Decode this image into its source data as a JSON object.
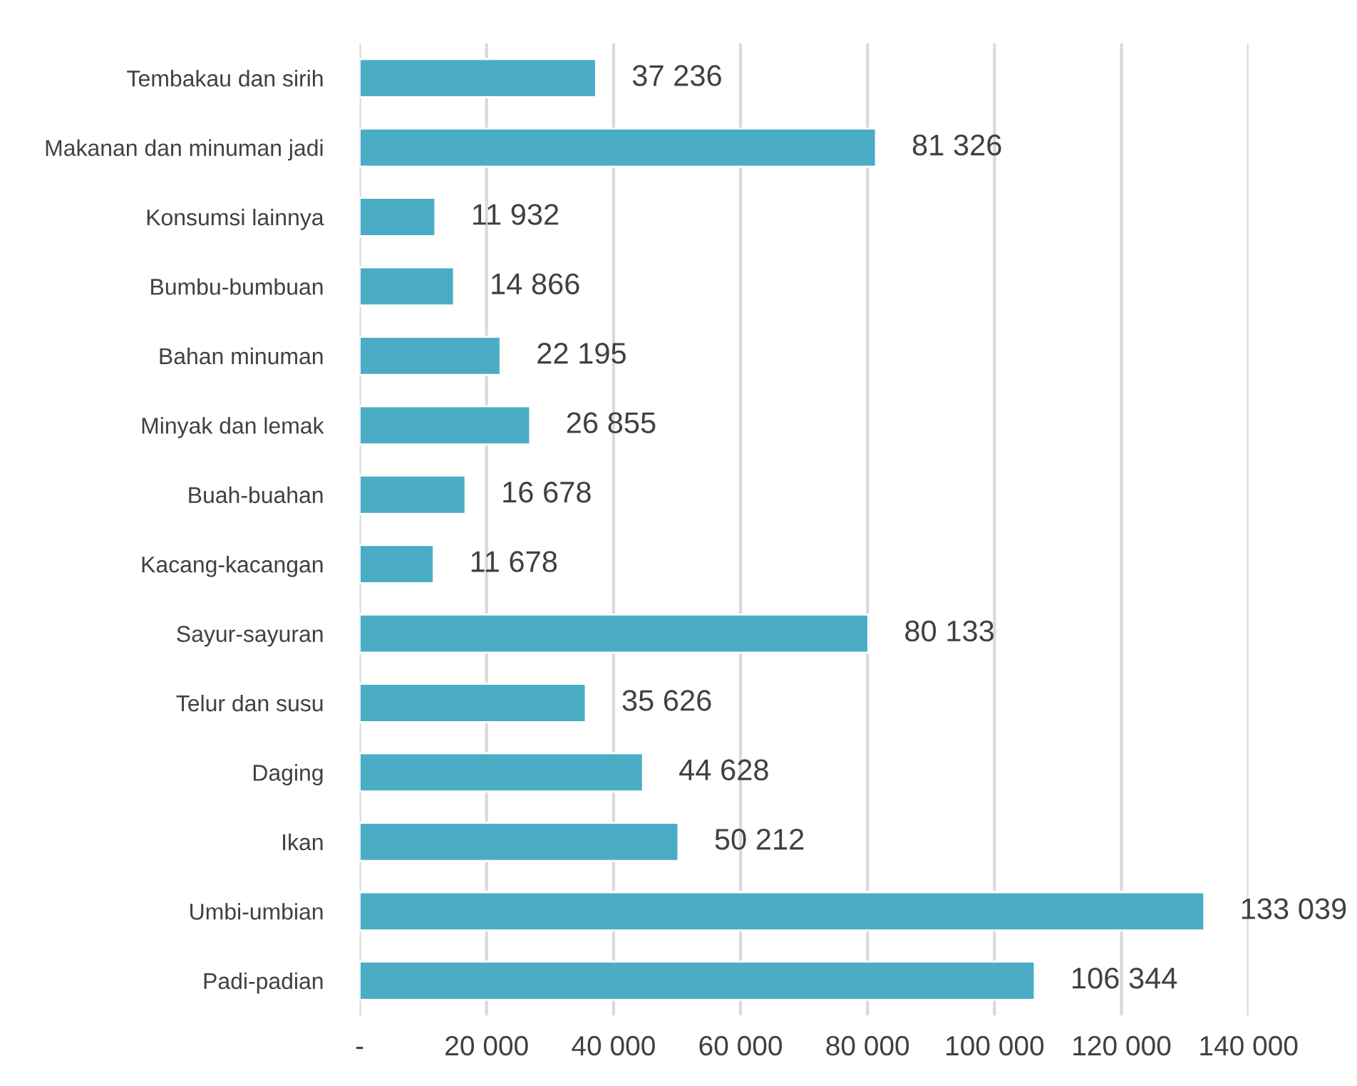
{
  "chart_data": {
    "type": "bar",
    "orientation": "horizontal",
    "categories": [
      "Tembakau dan sirih",
      "Makanan dan minuman jadi",
      "Konsumsi lainnya",
      "Bumbu-bumbuan",
      "Bahan minuman",
      "Minyak dan lemak",
      "Buah-buahan",
      "Kacang-kacangan",
      "Sayur-sayuran",
      "Telur dan susu",
      "Daging",
      "Ikan",
      "Umbi-umbian",
      "Padi-padian"
    ],
    "values": [
      37236,
      81326,
      11932,
      14866,
      22195,
      26855,
      16678,
      11678,
      80133,
      35626,
      44628,
      50212,
      133039,
      106344
    ],
    "value_labels": [
      "37 236",
      "81 326",
      "11 932",
      "14 866",
      "22 195",
      "26 855",
      "16 678",
      "11 678",
      "80 133",
      "35 626",
      "44 628",
      "50 212",
      "133 039",
      "106 344"
    ],
    "color": "#4bacc6",
    "xlim": [
      0,
      140000
    ],
    "xticks": [
      {
        "value": 0,
        "label": "-"
      },
      {
        "value": 20000,
        "label": "20 000"
      },
      {
        "value": 40000,
        "label": "40 000"
      },
      {
        "value": 60000,
        "label": "60 000"
      },
      {
        "value": 80000,
        "label": "80 000"
      },
      {
        "value": 100000,
        "label": "100 000"
      },
      {
        "value": 120000,
        "label": "120 000"
      },
      {
        "value": 140000,
        "label": "140 000"
      }
    ],
    "grid": "x"
  }
}
